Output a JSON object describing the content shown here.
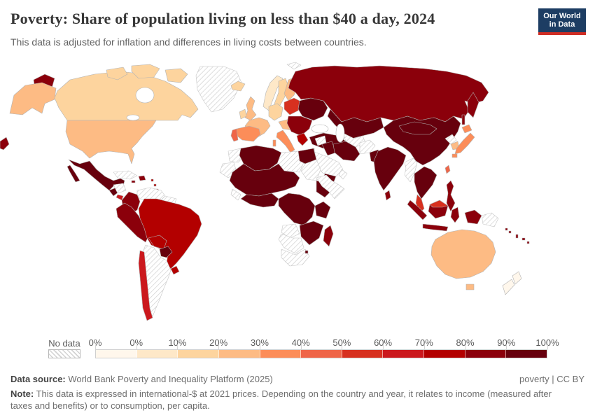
{
  "header": {
    "title": "Poverty: Share of population living on less than $40 a day, 2024",
    "subtitle": "This data is adjusted for inflation and differences in living costs between countries."
  },
  "logo": {
    "line1": "Our World",
    "line2": "in Data",
    "bg_color": "#1d3d63",
    "accent_color": "#cf2d24",
    "text_color": "#ffffff"
  },
  "legend": {
    "no_data_label": "No data",
    "tick_labels": [
      "0%",
      "0%",
      "10%",
      "20%",
      "30%",
      "40%",
      "50%",
      "60%",
      "70%",
      "80%",
      "90%",
      "100%"
    ],
    "bin_colors": [
      "#fff7ec",
      "#fee8c8",
      "#fdd49e",
      "#fdbb84",
      "#fc8d59",
      "#ef6548",
      "#d7301f",
      "#cb181d",
      "#b30000",
      "#8b000b",
      "#67000d"
    ]
  },
  "footer": {
    "datasource_label": "Data source:",
    "datasource": "World Bank Poverty and Inequality Platform (2025)",
    "attribution": "poverty | CC BY",
    "note_label": "Note:",
    "note": "This data is expressed in international-$ at 2021 prices. Depending on the country and year, it relates to income (measured after taxes and benefits) or to consumption, per capita."
  },
  "map_regions": {
    "chukotka": "#8b000b",
    "alaska": "#fdbb84",
    "canada": "#fdd49e",
    "arctic-islands": "#fdd49e",
    "greenland": "nodata",
    "usa": "#fdbb84",
    "mexico": "#67000d",
    "guatemala": "#67000d",
    "honduras-nicaragua": "nodata",
    "costa-rica": "#cb181d",
    "panama": "#67000d",
    "cuba": "nodata",
    "hispaniola": "#8b000b",
    "jamaica": "#8b000b",
    "lesser-antilles": "#b30000",
    "colombia": "#8b000b",
    "venezuela": "nodata",
    "guianas": "nodata",
    "ecuador-peru": "#8b000b",
    "brazil": "#b30000",
    "bolivia": "#b30000",
    "paraguay": "#67000d",
    "uruguay": "#b30000",
    "argentina": "nodata",
    "chile": "#cb181d",
    "iceland": "#fdd49e",
    "norway": "#fee8c8",
    "sweden": "#fdd49e",
    "finland": "#fdbb84",
    "denmark": "#fdd49e",
    "uk": "#fdbb84",
    "ireland": "#fdd49e",
    "france": "#fdbb84",
    "germany": "#fdd49e",
    "central-europe": "#fdbb84",
    "spain": "#fc8d59",
    "portugal": "#ef6548",
    "italy": "#fc8d59",
    "poland-baltics": "#d7301f",
    "belarus-ukraine": "#67000d",
    "romania-balkans": "#8b000b",
    "greece": "#b30000",
    "turkey": "#67000d",
    "svalbard": "nodata",
    "russia": "#8b000b",
    "kazakhstan": "#67000d",
    "turkmenistan-uzbekistan": "nodata",
    "iran": "#67000d",
    "afghanistan": "nodata",
    "pakistan": "#67000d",
    "iraq": "#67000d",
    "syria": "nodata",
    "israel": "#fdbb84",
    "saudi-arabia": "nodata",
    "yemen": "#67000d",
    "oman": "nodata",
    "morocco": "nodata",
    "western-sahara": "nodata",
    "algeria": "#67000d",
    "libya": "nodata",
    "egypt": "#67000d",
    "sahel": "#67000d",
    "west-africa": "#67000d",
    "west-africa-coast": "nodata",
    "sudan": "nodata",
    "ethiopia": "#67000d",
    "somalia": "nodata",
    "central-africa": "#67000d",
    "east-africa": "#67000d",
    "angola": "nodata",
    "zambia-mozambique": "#67000d",
    "namibia-botswana": "nodata",
    "south-africa": "nodata",
    "eswatini": "#67000d",
    "madagascar": "#8b000b",
    "india": "#67000d",
    "sri-lanka": "#8b000b",
    "china": "#67000d",
    "mongolia": "#67000d",
    "myanmar": "nodata",
    "indochina": "#67000d",
    "malaysia": "#d7301f",
    "sumatra": "#8b000b",
    "java": "#8b000b",
    "borneo": "#8b000b",
    "borneo-malaysia": "#d7301f",
    "sulawesi": "#8b000b",
    "philippines": "#8b000b",
    "new-guinea-west": "#8b000b",
    "papua-new-guinea": "nodata",
    "north-korea": "nodata",
    "south-korea": "#fdbb84",
    "japan": "#fc8d59",
    "taiwan": "#ef6548",
    "australia": "#fdbb84",
    "tasmania": "#fdbb84",
    "new-zealand": "#fff7ec",
    "fiji": "#8b000b",
    "vanuatu": "#8b000b",
    "solomon": "#8b000b"
  },
  "chart_data": {
    "type": "heatmap",
    "subtype": "choropleth-world-map",
    "title": "Poverty: Share of population living on less than $40 a day, 2024",
    "unit": "share of population (%)",
    "bin_edges_labels": [
      "0%",
      "0%",
      "10%",
      "20%",
      "30%",
      "40%",
      "50%",
      "60%",
      "70%",
      "80%",
      "90%",
      "100%"
    ],
    "bin_colors": [
      "#fff7ec",
      "#fee8c8",
      "#fdd49e",
      "#fdbb84",
      "#fc8d59",
      "#ef6548",
      "#d7301f",
      "#cb181d",
      "#b30000",
      "#8b000b",
      "#67000d"
    ],
    "no_data": {
      "label": "No data",
      "style": "hatched"
    },
    "legend_position": "bottom",
    "regions": [
      {
        "entity": "Canada",
        "value_bin": "10-20%"
      },
      {
        "entity": "United States",
        "value_bin": "20-30%"
      },
      {
        "entity": "Greenland",
        "value_bin": "No data"
      },
      {
        "entity": "Mexico",
        "value_bin": "90-100%"
      },
      {
        "entity": "Guatemala",
        "value_bin": "90-100%"
      },
      {
        "entity": "Honduras & Nicaragua",
        "value_bin": "No data"
      },
      {
        "entity": "Costa Rica",
        "value_bin": "60-70%"
      },
      {
        "entity": "Panama",
        "value_bin": "90-100%"
      },
      {
        "entity": "Cuba",
        "value_bin": "No data"
      },
      {
        "entity": "Haiti & Dominican Republic",
        "value_bin": "80-90%"
      },
      {
        "entity": "Colombia",
        "value_bin": "80-90%"
      },
      {
        "entity": "Venezuela",
        "value_bin": "No data"
      },
      {
        "entity": "Guyana & Suriname",
        "value_bin": "No data"
      },
      {
        "entity": "Ecuador",
        "value_bin": "80-90%"
      },
      {
        "entity": "Peru",
        "value_bin": "80-90%"
      },
      {
        "entity": "Brazil",
        "value_bin": "70-80%"
      },
      {
        "entity": "Bolivia",
        "value_bin": "70-80%"
      },
      {
        "entity": "Paraguay",
        "value_bin": "90-100%"
      },
      {
        "entity": "Chile",
        "value_bin": "60-70%"
      },
      {
        "entity": "Uruguay",
        "value_bin": "70-80%"
      },
      {
        "entity": "Argentina",
        "value_bin": "No data"
      },
      {
        "entity": "Iceland",
        "value_bin": "10-20%"
      },
      {
        "entity": "Norway",
        "value_bin": "0-10%"
      },
      {
        "entity": "Sweden",
        "value_bin": "10-20%"
      },
      {
        "entity": "Finland",
        "value_bin": "20-30%"
      },
      {
        "entity": "United Kingdom",
        "value_bin": "20-30%"
      },
      {
        "entity": "Ireland",
        "value_bin": "10-20%"
      },
      {
        "entity": "France",
        "value_bin": "20-30%"
      },
      {
        "entity": "Germany",
        "value_bin": "10-20%"
      },
      {
        "entity": "Spain",
        "value_bin": "30-40%"
      },
      {
        "entity": "Portugal",
        "value_bin": "40-50%"
      },
      {
        "entity": "Italy",
        "value_bin": "30-40%"
      },
      {
        "entity": "Poland & Baltic states",
        "value_bin": "50-60%"
      },
      {
        "entity": "Czechia, Austria & Hungary",
        "value_bin": "20-30%"
      },
      {
        "entity": "Romania & Bulgaria",
        "value_bin": "80-90%"
      },
      {
        "entity": "Western Balkans",
        "value_bin": "90-100%"
      },
      {
        "entity": "Greece",
        "value_bin": "70-80%"
      },
      {
        "entity": "Belarus & Ukraine",
        "value_bin": "90-100%"
      },
      {
        "entity": "Russia",
        "value_bin": "80-90%"
      },
      {
        "entity": "Turkey",
        "value_bin": "90-100%"
      },
      {
        "entity": "Kazakhstan & Central Asia",
        "value_bin": "90-100%"
      },
      {
        "entity": "Turkmenistan & Uzbekistan",
        "value_bin": "No data"
      },
      {
        "entity": "Iran",
        "value_bin": "90-100%"
      },
      {
        "entity": "Afghanistan",
        "value_bin": "No data"
      },
      {
        "entity": "Pakistan",
        "value_bin": "90-100%"
      },
      {
        "entity": "India",
        "value_bin": "90-100%"
      },
      {
        "entity": "Sri Lanka",
        "value_bin": "80-90%"
      },
      {
        "entity": "China",
        "value_bin": "90-100%"
      },
      {
        "entity": "Mongolia",
        "value_bin": "90-100%"
      },
      {
        "entity": "Japan",
        "value_bin": "30-40%"
      },
      {
        "entity": "South Korea",
        "value_bin": "20-30%"
      },
      {
        "entity": "North Korea",
        "value_bin": "No data"
      },
      {
        "entity": "Taiwan",
        "value_bin": "40-50%"
      },
      {
        "entity": "Myanmar",
        "value_bin": "No data"
      },
      {
        "entity": "Thailand, Vietnam, Laos & Cambodia",
        "value_bin": "90-100%"
      },
      {
        "entity": "Malaysia",
        "value_bin": "50-60%"
      },
      {
        "entity": "Indonesia",
        "value_bin": "80-90%"
      },
      {
        "entity": "Philippines",
        "value_bin": "80-90%"
      },
      {
        "entity": "Papua New Guinea",
        "value_bin": "No data"
      },
      {
        "entity": "Australia",
        "value_bin": "20-30%"
      },
      {
        "entity": "New Zealand",
        "value_bin": "0%"
      },
      {
        "entity": "Fiji & Vanuatu",
        "value_bin": "80-90%"
      },
      {
        "entity": "Saudi Arabia & Gulf states",
        "value_bin": "No data"
      },
      {
        "entity": "Syria",
        "value_bin": "No data"
      },
      {
        "entity": "Iraq",
        "value_bin": "90-100%"
      },
      {
        "entity": "Israel",
        "value_bin": "20-30%"
      },
      {
        "entity": "Yemen",
        "value_bin": "90-100%"
      },
      {
        "entity": "Egypt",
        "value_bin": "90-100%"
      },
      {
        "entity": "Libya",
        "value_bin": "No data"
      },
      {
        "entity": "Algeria & Tunisia",
        "value_bin": "90-100%"
      },
      {
        "entity": "Morocco & Western Sahara",
        "value_bin": "No data"
      },
      {
        "entity": "West Africa",
        "value_bin": "90-100%"
      },
      {
        "entity": "Sudan",
        "value_bin": "No data"
      },
      {
        "entity": "Ethiopia",
        "value_bin": "90-100%"
      },
      {
        "entity": "Somalia & Eritrea",
        "value_bin": "No data"
      },
      {
        "entity": "DR Congo & Central Africa",
        "value_bin": "90-100%"
      },
      {
        "entity": "Kenya & Tanzania",
        "value_bin": "90-100%"
      },
      {
        "entity": "Angola",
        "value_bin": "No data"
      },
      {
        "entity": "Zambia, Zimbabwe & Mozambique",
        "value_bin": "90-100%"
      },
      {
        "entity": "Namibia & Botswana",
        "value_bin": "No data"
      },
      {
        "entity": "South Africa",
        "value_bin": "No data"
      },
      {
        "entity": "Madagascar",
        "value_bin": "80-90%"
      }
    ]
  }
}
